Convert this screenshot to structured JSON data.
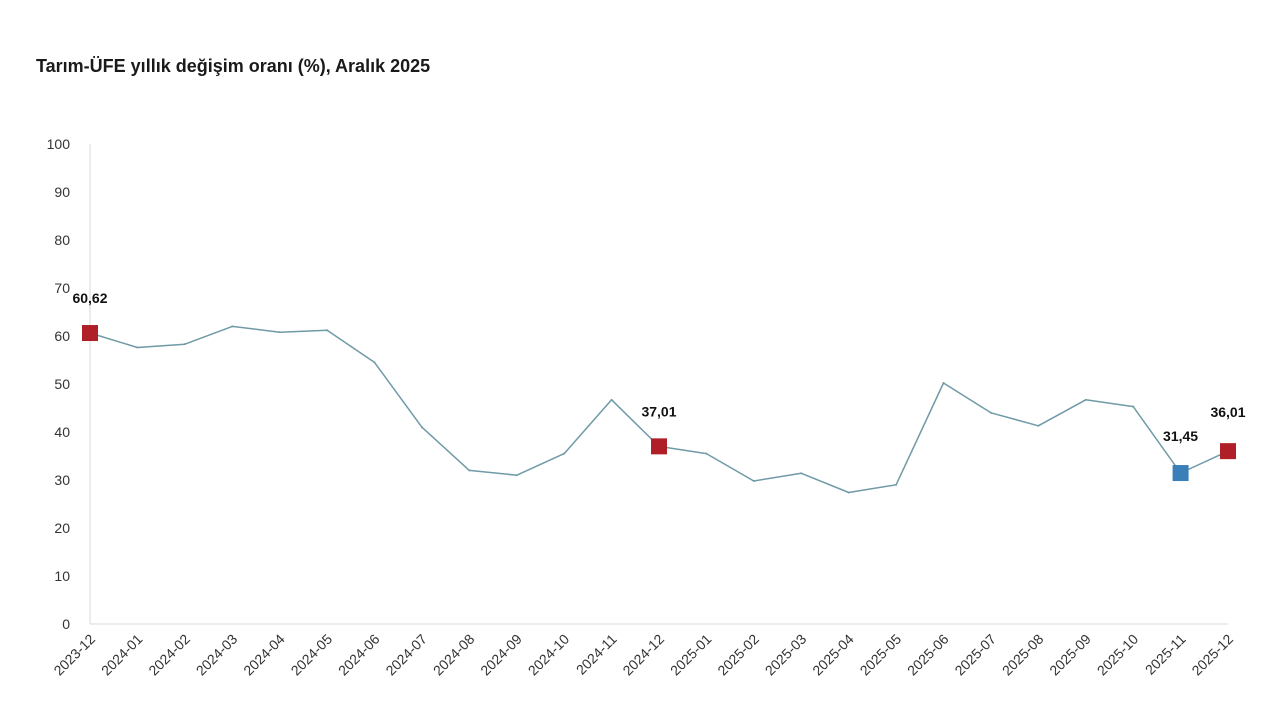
{
  "chart_data": {
    "type": "line",
    "title": "Tarım-ÜFE yıllık değişim oranı (%), Aralık 2025",
    "xlabel": "",
    "ylabel": "",
    "ylim": [
      0,
      100
    ],
    "yticks": [
      "0",
      "10",
      "20",
      "30",
      "40",
      "50",
      "60",
      "70",
      "80",
      "90",
      "100"
    ],
    "grid": false,
    "legend": "none",
    "categories": [
      "2023-12",
      "2024-01",
      "2024-02",
      "2024-03",
      "2024-04",
      "2024-05",
      "2024-06",
      "2024-07",
      "2024-08",
      "2024-09",
      "2024-10",
      "2024-11",
      "2024-12",
      "2025-01",
      "2025-02",
      "2025-03",
      "2025-04",
      "2025-05",
      "2025-06",
      "2025-07",
      "2025-08",
      "2025-09",
      "2025-10",
      "2025-11",
      "2025-12"
    ],
    "series": [
      {
        "values": [
          60.62,
          57.6,
          58.3,
          62.0,
          60.8,
          61.2,
          54.5,
          41.0,
          32.0,
          31.0,
          35.5,
          46.7,
          37.01,
          35.5,
          29.8,
          31.4,
          27.4,
          29.0,
          50.2,
          44.0,
          41.3,
          46.7,
          45.3,
          31.45,
          36.01
        ],
        "color": "#6f9aa6"
      }
    ],
    "highlights": [
      {
        "index": 0,
        "label": "60,62",
        "color": "#b01f28"
      },
      {
        "index": 12,
        "label": "37,01",
        "color": "#b01f28"
      },
      {
        "index": 23,
        "label": "31,45",
        "color": "#3a7fb8"
      },
      {
        "index": 24,
        "label": "36,01",
        "color": "#b01f28"
      }
    ],
    "axis_color": "#d9d9d9"
  }
}
